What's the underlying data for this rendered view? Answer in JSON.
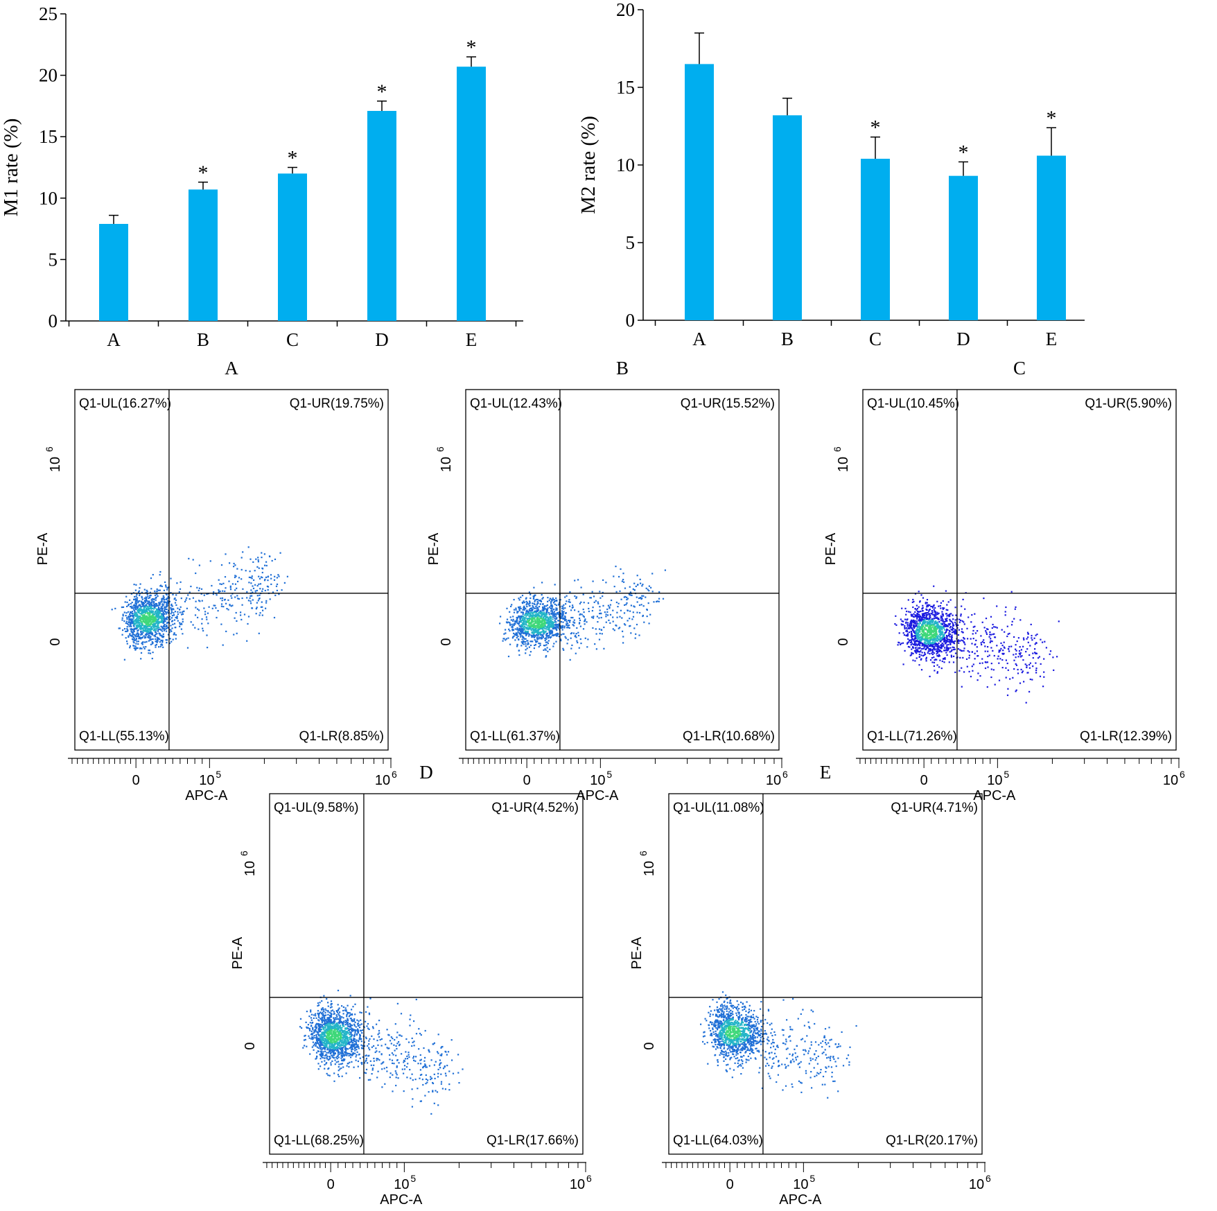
{
  "colors": {
    "bar": "#00AEEF",
    "axis": "#000000",
    "gate": "#000000",
    "dot_main": "#1f6fd6",
    "dot_mid": "#23b5c8",
    "dot_hot": "#3fd87a",
    "dot_blue": "#1a1adf"
  },
  "chart_data": [
    {
      "type": "bar",
      "id": "m1",
      "categories": [
        "A",
        "B",
        "C",
        "D",
        "E"
      ],
      "values": [
        7.9,
        10.7,
        12.0,
        17.1,
        20.7
      ],
      "errors": [
        0.7,
        0.6,
        0.5,
        0.8,
        0.8
      ],
      "significance": [
        "",
        "*",
        "*",
        "*",
        "*"
      ],
      "ylabel": "M1 rate (%)",
      "ylim": [
        0,
        25
      ],
      "yticks": [
        0,
        5,
        10,
        15,
        20,
        25
      ],
      "ytick_labels": [
        "0",
        "5",
        "10",
        "15",
        "20",
        "25"
      ]
    },
    {
      "type": "bar",
      "id": "m2",
      "categories": [
        "A",
        "B",
        "C",
        "D",
        "E"
      ],
      "values": [
        16.5,
        13.2,
        10.4,
        9.3,
        10.6
      ],
      "errors": [
        2.0,
        1.1,
        1.4,
        0.9,
        1.8
      ],
      "significance": [
        "",
        "",
        "*",
        "*",
        "*"
      ],
      "ylabel": "M2 rate (%)",
      "ylim": [
        0,
        20
      ],
      "yticks": [
        0,
        5,
        10,
        15,
        20
      ],
      "ytick_labels": [
        "0",
        "5",
        "10",
        "15",
        "20"
      ]
    },
    {
      "type": "scatter",
      "title": "A",
      "xlabel": "APC-A",
      "ylabel": "PE-A",
      "quadrants": {
        "UL": "Q1-UL(16.27%)",
        "UR": "Q1-UR(19.75%)",
        "LL": "Q1-LL(55.13%)",
        "LR": "Q1-LR(8.85%)"
      },
      "gate": {
        "x": 45000,
        "y": 270000
      },
      "cloud": {
        "cx": 15000,
        "cy": 130000,
        "sx": 32000,
        "sy": 110000,
        "tail_x": 210000,
        "tail_y": 280000,
        "n": 1500
      },
      "palette": "standard"
    },
    {
      "type": "scatter",
      "title": "B",
      "xlabel": "APC-A",
      "ylabel": "PE-A",
      "quadrants": {
        "UL": "Q1-UL(12.43%)",
        "UR": "Q1-UR(15.52%)",
        "LL": "Q1-LL(61.37%)",
        "LR": "Q1-LR(10.68%)"
      },
      "gate": {
        "x": 45000,
        "y": 270000
      },
      "cloud": {
        "cx": 12000,
        "cy": 110000,
        "sx": 38000,
        "sy": 95000,
        "tail_x": 170000,
        "tail_y": 150000,
        "n": 1400
      },
      "palette": "standard"
    },
    {
      "type": "scatter",
      "title": "C",
      "xlabel": "APC-A",
      "ylabel": "PE-A",
      "quadrants": {
        "UL": "Q1-UL(10.45%)",
        "UR": "Q1-UR(5.90%)",
        "LL": "Q1-LL(71.26%)",
        "LR": "Q1-LR(12.39%)"
      },
      "gate": {
        "x": 45000,
        "y": 270000
      },
      "cloud": {
        "cx": 5000,
        "cy": 60000,
        "sx": 36000,
        "sy": 110000,
        "tail_x": 170000,
        "tail_y": -200000,
        "n": 1500
      },
      "palette": "blue"
    },
    {
      "type": "scatter",
      "title": "D",
      "xlabel": "APC-A",
      "ylabel": "PE-A",
      "quadrants": {
        "UL": "Q1-UL(9.58%)",
        "UR": "Q1-UR(4.52%)",
        "LL": "Q1-LL(68.25%)",
        "LR": "Q1-LR(17.66%)"
      },
      "gate": {
        "x": 45000,
        "y": 270000
      },
      "cloud": {
        "cx": 2000,
        "cy": 60000,
        "sx": 36000,
        "sy": 110000,
        "tail_x": 170000,
        "tail_y": -260000,
        "n": 1600
      },
      "palette": "standard"
    },
    {
      "type": "scatter",
      "title": "E",
      "xlabel": "APC-A",
      "ylabel": "PE-A",
      "quadrants": {
        "UL": "Q1-UL(11.08%)",
        "UR": "Q1-UR(4.71%)",
        "LL": "Q1-LL(64.03%)",
        "LR": "Q1-LR(20.17%)"
      },
      "gate": {
        "x": 45000,
        "y": 270000
      },
      "cloud": {
        "cx": 2000,
        "cy": 80000,
        "sx": 36000,
        "sy": 110000,
        "tail_x": 150000,
        "tail_y": -230000,
        "n": 1300
      },
      "palette": "standard"
    }
  ],
  "flow_axes": {
    "x_tick_zero": "0",
    "x_tick_mid": "10",
    "x_tick_mid_exp": "5",
    "x_tick_max": "10",
    "x_tick_max_exp": "6",
    "y_tick_zero": "0",
    "y_tick_top": "10",
    "y_tick_top_exp": "6"
  }
}
